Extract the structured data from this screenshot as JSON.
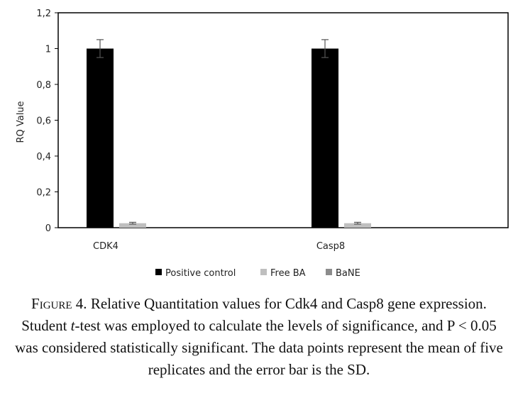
{
  "chart_data": {
    "type": "bar",
    "categories": [
      "CDK4",
      "Casp8"
    ],
    "series": [
      {
        "name": "Positive control",
        "values": [
          1.0,
          1.0
        ],
        "error": [
          0.05,
          0.05
        ],
        "color": "#000000"
      },
      {
        "name": "Free BA",
        "values": [
          0.025,
          0.025
        ],
        "error": [
          0.005,
          0.005
        ],
        "color": "#bfbfbf"
      },
      {
        "name": "BaNE",
        "values": [
          0.0,
          0.0
        ],
        "error": [
          0.0,
          0.0
        ],
        "color": "#8c8c8c"
      }
    ],
    "ylabel": "RQ Value",
    "ylim": [
      0,
      1.2
    ],
    "yticks": [
      "0",
      "0,2",
      "0,4",
      "0,6",
      "0,8",
      "1",
      "1,2"
    ],
    "grid": false,
    "legend_position": "bottom"
  },
  "caption": {
    "label": "Figure 4.",
    "parts": [
      " Relative Quantitation values for Cdk4 and Casp8 gene expression. Student ",
      "t",
      "-test was employed to calculate the levels of significance, and P < 0.05 was considered statistically significant. The data points represent the mean of five replicates and the error bar is the SD."
    ]
  }
}
